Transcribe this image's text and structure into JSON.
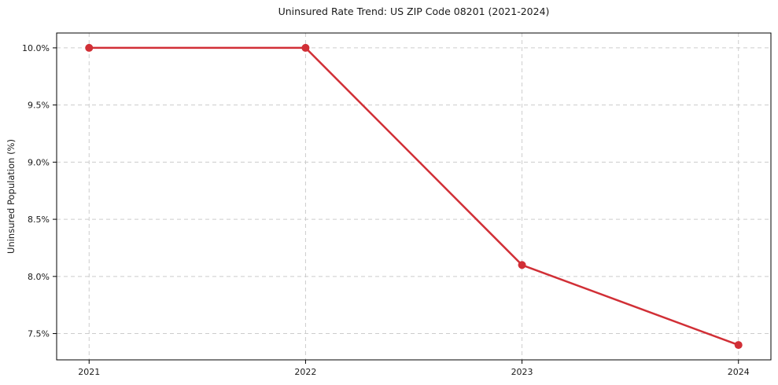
{
  "chart_data": {
    "type": "line",
    "title": "Uninsured Rate Trend: US ZIP Code 08201 (2021-2024)",
    "xlabel": "",
    "ylabel": "Uninsured Population (%)",
    "x": [
      2021,
      2022,
      2023,
      2024
    ],
    "x_tick_labels": [
      "2021",
      "2022",
      "2023",
      "2024"
    ],
    "y_ticks": [
      7.5,
      8.0,
      8.5,
      9.0,
      9.5,
      10.0
    ],
    "y_tick_labels": [
      "7.5%",
      "8.0%",
      "8.5%",
      "9.0%",
      "9.5%",
      "10.0%"
    ],
    "series": [
      {
        "name": "Uninsured Population (%)",
        "values": [
          10.0,
          10.0,
          8.1,
          7.4
        ]
      }
    ],
    "xlim": [
      2020.85,
      2024.15
    ],
    "ylim": [
      7.27,
      10.13
    ],
    "grid": true,
    "grid_style": "dashed",
    "legend": "none",
    "marker": "circle",
    "style": {
      "line_color": "#d12f36",
      "marker_color": "#d12f36",
      "grid_color": "#cccccc",
      "axis_color": "#000000",
      "text_color": "#1a1a1a",
      "background": "#ffffff"
    }
  }
}
